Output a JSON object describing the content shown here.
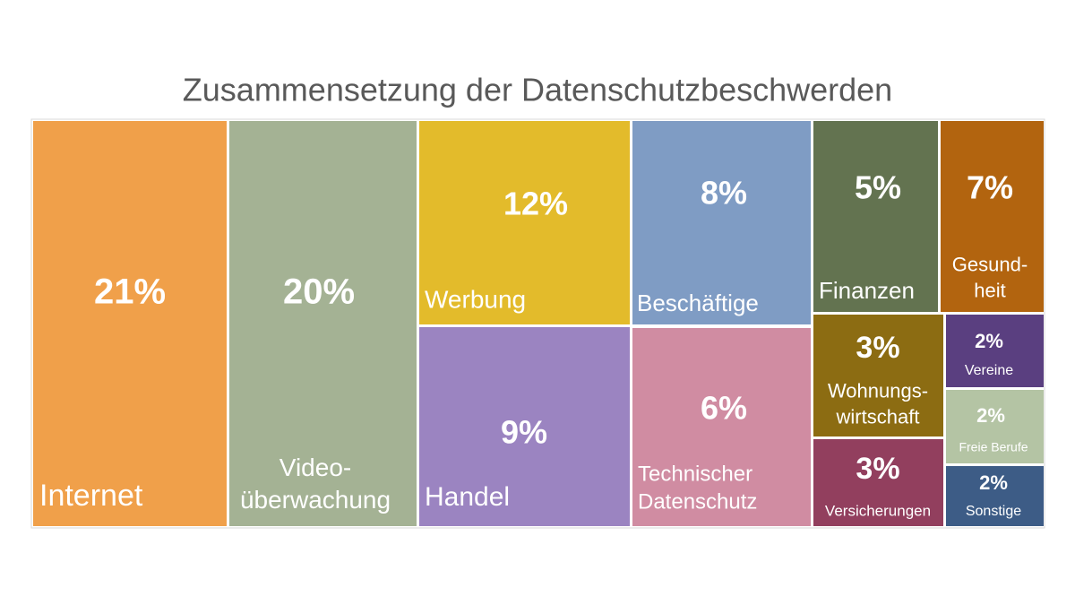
{
  "chart_data": {
    "type": "treemap",
    "title": "Zusammensetzung der Datenschutzbeschwerden",
    "categories": [
      "Internet",
      "Video-\nüberwachung",
      "Werbung",
      "Handel",
      "Beschäftige",
      "Technischer\nDatenschutz",
      "Finanzen",
      "Gesund-\nheit",
      "Wohnungs-\nwirtschaft",
      "Versicherungen",
      "Vereine",
      "Freie Berufe",
      "Sonstige"
    ],
    "values": [
      21,
      20,
      12,
      9,
      8,
      6,
      5,
      7,
      3,
      3,
      2,
      2,
      2
    ],
    "value_labels": [
      "21%",
      "20%",
      "12%",
      "9%",
      "8%",
      "6%",
      "5%",
      "7%",
      "3%",
      "3%",
      "2%",
      "2%",
      "2%"
    ],
    "colors": [
      "#f0a04a",
      "#a4b294",
      "#e3bb2b",
      "#9b84c1",
      "#7f9cc4",
      "#d08ca2",
      "#637350",
      "#b2640f",
      "#8c6c12",
      "#923f5e",
      "#5a3f80",
      "#b4c4a4",
      "#3d5c86"
    ]
  }
}
